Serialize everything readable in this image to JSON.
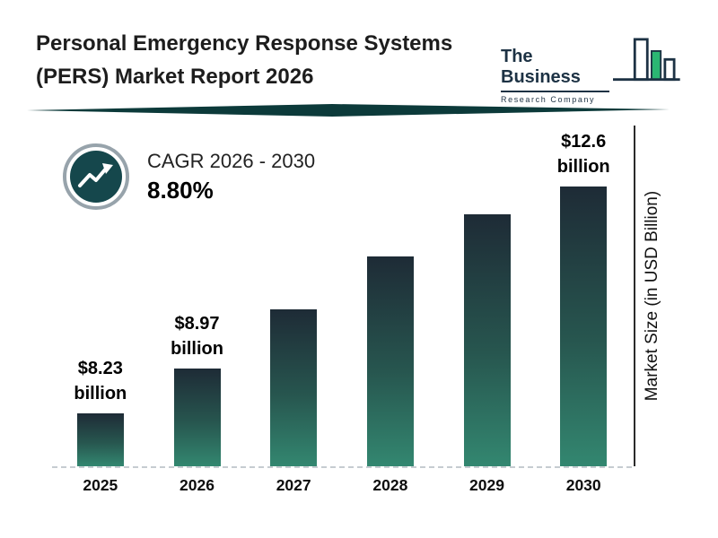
{
  "header": {
    "title_line1": "Personal Emergency Response Systems",
    "title_line2": "(PERS) Market Report 2026",
    "logo_line1": "The Business",
    "logo_line2": "Research Company"
  },
  "cagr": {
    "label": "CAGR 2026 - 2030",
    "value": "8.80%"
  },
  "chart_data": {
    "type": "bar",
    "title": "Personal Emergency Response Systems (PERS) Market Report 2026",
    "categories": [
      "2025",
      "2026",
      "2027",
      "2028",
      "2029",
      "2030"
    ],
    "values": [
      8.23,
      8.97,
      9.76,
      10.62,
      11.55,
      12.6
    ],
    "data_labels": [
      "$8.23 billion",
      "$8.97 billion",
      "",
      "",
      "",
      "$12.6 billion"
    ],
    "xlabel": "",
    "ylabel": "Market Size (in USD Billion)",
    "ylim": [
      7.2,
      12.6
    ],
    "grid": false,
    "legend": false,
    "bar_height_frac": [
      0.19,
      0.35,
      0.56,
      0.75,
      0.9,
      1.0
    ]
  },
  "colors": {
    "bar_gradient_top": "#1e2b36",
    "bar_gradient_bottom": "#338770",
    "divider_teal": "#0c3a3a",
    "icon_teal": "#15474c",
    "icon_ring_grey": "#97a3ab",
    "logo_navy": "#1d3244",
    "logo_green": "#2bb673",
    "text_dark": "#111111"
  }
}
